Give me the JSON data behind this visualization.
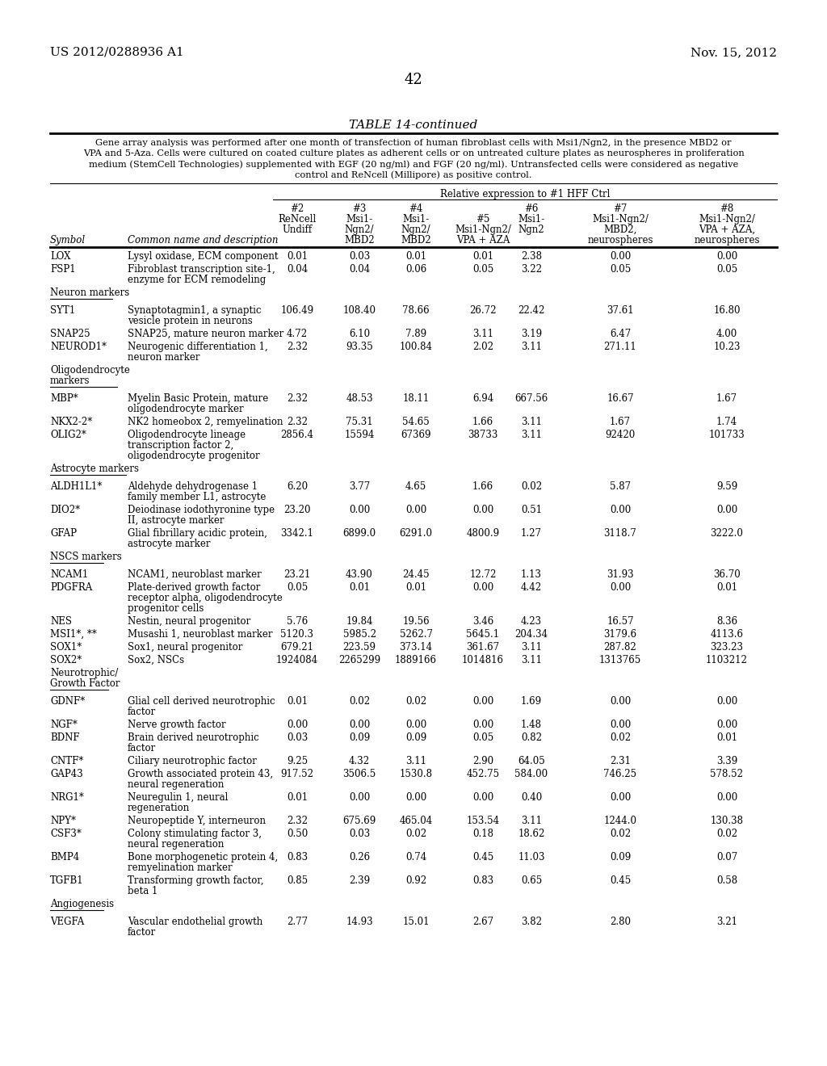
{
  "header_left": "US 2012/0288936 A1",
  "header_right": "Nov. 15, 2012",
  "page_number": "42",
  "table_title": "TABLE 14-continued",
  "caption_lines": [
    "Gene array analysis was performed after one month of transfection of human fibroblast cells with Msi1/Ngn2, in the presence MBD2 or",
    "VPA and 5-Aza. Cells were cultured on coated culture plates as adherent cells or on untreated culture plates as neurospheres in proliferation",
    "medium (StemCell Technologies) supplemented with EGF (20 ng/ml) and FGF (20 ng/ml). Untransfected cells were considered as negative",
    "control and ReNcell (Millipore) as positive control."
  ],
  "relative_expression_header": "Relative expression to #1 HFF Ctrl",
  "col_positions": {
    "symbol": 62,
    "desc": 158,
    "col2": 368,
    "col3": 445,
    "col4": 515,
    "col5": 598,
    "col6": 658,
    "col7": 768,
    "col8": 900
  },
  "col_header_lines": [
    [
      "",
      "",
      "#2",
      "#3",
      "#4",
      "",
      "#6",
      "#7",
      "#8"
    ],
    [
      "",
      "",
      "ReNcell",
      "Msi1-",
      "Msi1-",
      "#5",
      "Msi1-",
      "Msi1-Ngn2/",
      "Msi1-Ngn2/"
    ],
    [
      "",
      "",
      "Undiff",
      "Ngn2/",
      "Ngn2/",
      "Msi1-Ngn2/",
      "Ngn2",
      "MBD2,",
      "VPA + AZA,"
    ],
    [
      "Symbol",
      "Common name and description",
      "",
      "MBD2",
      "MBD2",
      "VPA + AZA",
      "",
      "neurospheres",
      "neurospheres"
    ]
  ],
  "sections": [
    {
      "type": "data",
      "rows": [
        {
          "symbol": "LOX",
          "desc": [
            "Lysyl oxidase, ECM component"
          ],
          "vals": [
            "0.01",
            "0.03",
            "0.01",
            "0.01",
            "2.38",
            "0.00",
            "0.00"
          ]
        },
        {
          "symbol": "FSP1",
          "desc": [
            "Fibroblast transcription site-1,",
            "enzyme for ECM remodeling"
          ],
          "vals": [
            "0.04",
            "0.04",
            "0.06",
            "0.05",
            "3.22",
            "0.05",
            "0.05"
          ]
        }
      ]
    },
    {
      "type": "section_header",
      "label": [
        "Neuron markers"
      ]
    },
    {
      "type": "data",
      "rows": [
        {
          "symbol": "SYT1",
          "desc": [
            "Synaptotagmin1, a synaptic",
            "vesicle protein in neurons"
          ],
          "vals": [
            "106.49",
            "108.40",
            "78.66",
            "26.72",
            "22.42",
            "37.61",
            "16.80"
          ]
        },
        {
          "symbol": "SNAP25",
          "desc": [
            "SNAP25, mature neuron marker"
          ],
          "vals": [
            "4.72",
            "6.10",
            "7.89",
            "3.11",
            "3.19",
            "6.47",
            "4.00"
          ]
        },
        {
          "symbol": "NEUROD1*",
          "desc": [
            "Neurogenic differentiation 1,",
            "neuron marker"
          ],
          "vals": [
            "2.32",
            "93.35",
            "100.84",
            "2.02",
            "3.11",
            "271.11",
            "10.23"
          ]
        }
      ]
    },
    {
      "type": "section_header",
      "label": [
        "Oligodendrocyte",
        "markers"
      ]
    },
    {
      "type": "data",
      "rows": [
        {
          "symbol": "MBP*",
          "desc": [
            "Myelin Basic Protein, mature",
            "oligodendrocyte marker"
          ],
          "vals": [
            "2.32",
            "48.53",
            "18.11",
            "6.94",
            "667.56",
            "16.67",
            "1.67"
          ]
        },
        {
          "symbol": "NKX2-2*",
          "desc": [
            "NK2 homeobox 2, remyelination"
          ],
          "vals": [
            "2.32",
            "75.31",
            "54.65",
            "1.66",
            "3.11",
            "1.67",
            "1.74"
          ]
        },
        {
          "symbol": "OLIG2*",
          "desc": [
            "Oligodendrocyte lineage",
            "transcription factor 2,",
            "oligodendrocyte progenitor"
          ],
          "vals": [
            "2856.4",
            "15594",
            "67369",
            "38733",
            "3.11",
            "92420",
            "101733"
          ]
        }
      ]
    },
    {
      "type": "section_header",
      "label": [
        "Astrocyte markers"
      ]
    },
    {
      "type": "data",
      "rows": [
        {
          "symbol": "ALDH1L1*",
          "desc": [
            "Aldehyde dehydrogenase 1",
            "family member L1, astrocyte"
          ],
          "vals": [
            "6.20",
            "3.77",
            "4.65",
            "1.66",
            "0.02",
            "5.87",
            "9.59"
          ]
        },
        {
          "symbol": "DIO2*",
          "desc": [
            "Deiodinase iodothyronine type",
            "II, astrocyte marker"
          ],
          "vals": [
            "23.20",
            "0.00",
            "0.00",
            "0.00",
            "0.51",
            "0.00",
            "0.00"
          ]
        },
        {
          "symbol": "GFAP",
          "desc": [
            "Glial fibrillary acidic protein,",
            "astrocyte marker"
          ],
          "vals": [
            "3342.1",
            "6899.0",
            "6291.0",
            "4800.9",
            "1.27",
            "3118.7",
            "3222.0"
          ]
        }
      ]
    },
    {
      "type": "section_header",
      "label": [
        "NSCS markers"
      ]
    },
    {
      "type": "data",
      "rows": [
        {
          "symbol": "NCAM1",
          "desc": [
            "NCAM1, neuroblast marker"
          ],
          "vals": [
            "23.21",
            "43.90",
            "24.45",
            "12.72",
            "1.13",
            "31.93",
            "36.70"
          ]
        },
        {
          "symbol": "PDGFRA",
          "desc": [
            "Plate-derived growth factor",
            "receptor alpha, oligodendrocyte",
            "progenitor cells"
          ],
          "vals": [
            "0.05",
            "0.01",
            "0.01",
            "0.00",
            "4.42",
            "0.00",
            "0.01"
          ]
        },
        {
          "symbol": "NES",
          "desc": [
            "Nestin, neural progenitor"
          ],
          "vals": [
            "5.76",
            "19.84",
            "19.56",
            "3.46",
            "4.23",
            "16.57",
            "8.36"
          ]
        },
        {
          "symbol": "MSI1*, **",
          "desc": [
            "Musashi 1, neuroblast marker"
          ],
          "vals": [
            "5120.3",
            "5985.2",
            "5262.7",
            "5645.1",
            "204.34",
            "3179.6",
            "4113.6"
          ]
        },
        {
          "symbol": "SOX1*",
          "desc": [
            "Sox1, neural progenitor"
          ],
          "vals": [
            "679.21",
            "223.59",
            "373.14",
            "361.67",
            "3.11",
            "287.82",
            "323.23"
          ]
        },
        {
          "symbol": "SOX2*",
          "desc": [
            "Sox2, NSCs"
          ],
          "vals": [
            "1924084",
            "2265299",
            "1889166",
            "1014816",
            "3.11",
            "1313765",
            "1103212"
          ]
        }
      ]
    },
    {
      "type": "section_header",
      "label": [
        "Neurotrophic/",
        "Growth Factor"
      ]
    },
    {
      "type": "data",
      "rows": [
        {
          "symbol": "GDNF*",
          "desc": [
            "Glial cell derived neurotrophic",
            "factor"
          ],
          "vals": [
            "0.01",
            "0.02",
            "0.02",
            "0.00",
            "1.69",
            "0.00",
            "0.00"
          ]
        },
        {
          "symbol": "NGF*",
          "desc": [
            "Nerve growth factor"
          ],
          "vals": [
            "0.00",
            "0.00",
            "0.00",
            "0.00",
            "1.48",
            "0.00",
            "0.00"
          ]
        },
        {
          "symbol": "BDNF",
          "desc": [
            "Brain derived neurotrophic",
            "factor"
          ],
          "vals": [
            "0.03",
            "0.09",
            "0.09",
            "0.05",
            "0.82",
            "0.02",
            "0.01"
          ]
        },
        {
          "symbol": "CNTF*",
          "desc": [
            "Ciliary neurotrophic factor"
          ],
          "vals": [
            "9.25",
            "4.32",
            "3.11",
            "2.90",
            "64.05",
            "2.31",
            "3.39"
          ]
        },
        {
          "symbol": "GAP43",
          "desc": [
            "Growth associated protein 43,",
            "neural regeneration"
          ],
          "vals": [
            "917.52",
            "3506.5",
            "1530.8",
            "452.75",
            "584.00",
            "746.25",
            "578.52"
          ]
        },
        {
          "symbol": "NRG1*",
          "desc": [
            "Neuregulin 1, neural",
            "regeneration"
          ],
          "vals": [
            "0.01",
            "0.00",
            "0.00",
            "0.00",
            "0.40",
            "0.00",
            "0.00"
          ]
        },
        {
          "symbol": "NPY*",
          "desc": [
            "Neuropeptide Y, interneuron"
          ],
          "vals": [
            "2.32",
            "675.69",
            "465.04",
            "153.54",
            "3.11",
            "1244.0",
            "130.38"
          ]
        },
        {
          "symbol": "CSF3*",
          "desc": [
            "Colony stimulating factor 3,",
            "neural regeneration"
          ],
          "vals": [
            "0.50",
            "0.03",
            "0.02",
            "0.18",
            "18.62",
            "0.02",
            "0.02"
          ]
        },
        {
          "symbol": "BMP4",
          "desc": [
            "Bone morphogenetic protein 4,",
            "remyelination marker"
          ],
          "vals": [
            "0.83",
            "0.26",
            "0.74",
            "0.45",
            "11.03",
            "0.09",
            "0.07"
          ]
        },
        {
          "symbol": "TGFB1",
          "desc": [
            "Transforming growth factor,",
            "beta 1"
          ],
          "vals": [
            "0.85",
            "2.39",
            "0.92",
            "0.83",
            "0.65",
            "0.45",
            "0.58"
          ]
        }
      ]
    },
    {
      "type": "section_header",
      "label": [
        "Angiogenesis"
      ]
    },
    {
      "type": "data",
      "rows": [
        {
          "symbol": "VEGFA",
          "desc": [
            "Vascular endothelial growth",
            "factor"
          ],
          "vals": [
            "2.77",
            "14.93",
            "15.01",
            "2.67",
            "3.82",
            "2.80",
            "3.21"
          ]
        }
      ]
    }
  ]
}
